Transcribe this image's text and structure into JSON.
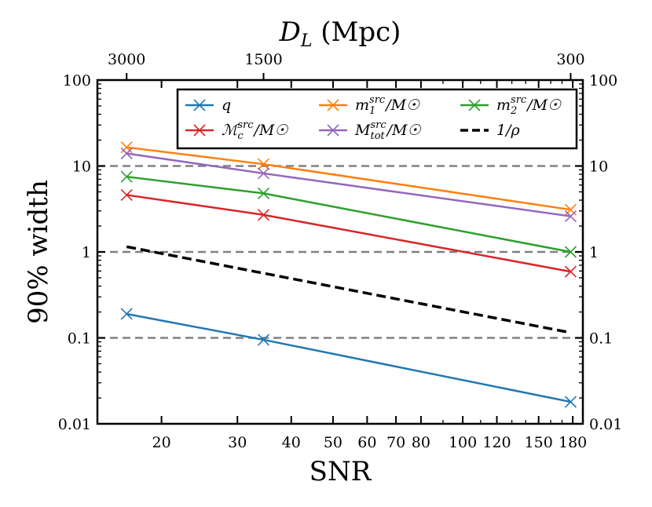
{
  "chart_data": {
    "type": "line",
    "scale": "log-log",
    "xlabel": "SNR",
    "ylabel": "90% width",
    "top_axis_label": "D_L (Mpc)",
    "top_axis_label_parts": {
      "main": "D",
      "sub": "L",
      "rest": " (Mpc)"
    },
    "xlim": [
      14.2,
      190
    ],
    "ylim": [
      0.01,
      100
    ],
    "x_ticks": [
      20,
      30,
      40,
      50,
      60,
      70,
      80,
      100,
      120,
      150,
      180
    ],
    "x_tick_labels": [
      "20",
      "30",
      "40",
      "50",
      "60",
      "70",
      "80",
      "100",
      "120",
      "150",
      "180"
    ],
    "y_ticks": [
      0.01,
      0.1,
      1,
      10,
      100
    ],
    "y_tick_labels": [
      "0.01",
      "0.1",
      "1",
      "10",
      "100"
    ],
    "top_ticks": [
      {
        "snr": 16.6,
        "label": "3000"
      },
      {
        "snr": 34.5,
        "label": "1500"
      },
      {
        "snr": 178,
        "label": "300"
      }
    ],
    "reference_lines": [
      0.1,
      1,
      10
    ],
    "legend_position": "top-right",
    "series": [
      {
        "name": "q",
        "label_parts": {
          "main": "q",
          "sup": "",
          "sub": "",
          "rest": ""
        },
        "color": "#1f77b4",
        "x": [
          16.6,
          34.5,
          178
        ],
        "y": [
          0.19,
          0.095,
          0.018
        ],
        "style": "solid",
        "marker": "x"
      },
      {
        "name": "m1src/M☉",
        "label_parts": {
          "main": "m",
          "sup": "src",
          "sub": "1",
          "rest": "/M☉"
        },
        "color": "#ff7f0e",
        "x": [
          16.6,
          34.5,
          178
        ],
        "y": [
          16.5,
          10.5,
          3.1
        ],
        "style": "solid",
        "marker": "x"
      },
      {
        "name": "m2src/M☉",
        "label_parts": {
          "main": "m",
          "sup": "src",
          "sub": "2",
          "rest": "/M☉"
        },
        "color": "#2ca02c",
        "x": [
          16.6,
          34.5,
          178
        ],
        "y": [
          7.5,
          4.8,
          1.0
        ],
        "style": "solid",
        "marker": "x"
      },
      {
        "name": "ℳcsrc/M☉",
        "label_parts": {
          "main": "ℳ",
          "sup": "src",
          "sub": "c",
          "rest": "/M☉"
        },
        "color": "#d62728",
        "x": [
          16.6,
          34.5,
          178
        ],
        "y": [
          4.6,
          2.7,
          0.59
        ],
        "style": "solid",
        "marker": "x"
      },
      {
        "name": "Mtotsrc/M☉",
        "label_parts": {
          "main": "M",
          "sup": "src",
          "sub": "tot",
          "rest": "/M☉"
        },
        "color": "#9467bd",
        "x": [
          16.6,
          34.5,
          178
        ],
        "y": [
          14.0,
          8.2,
          2.6
        ],
        "style": "solid",
        "marker": "x"
      },
      {
        "name": "1/ρ",
        "label_parts": {
          "main": "1/ρ",
          "sup": "",
          "sub": "",
          "rest": ""
        },
        "color": "#000000",
        "x": [
          16.6,
          178
        ],
        "y": [
          1.15,
          0.115
        ],
        "style": "dashed",
        "marker": "none"
      }
    ]
  }
}
